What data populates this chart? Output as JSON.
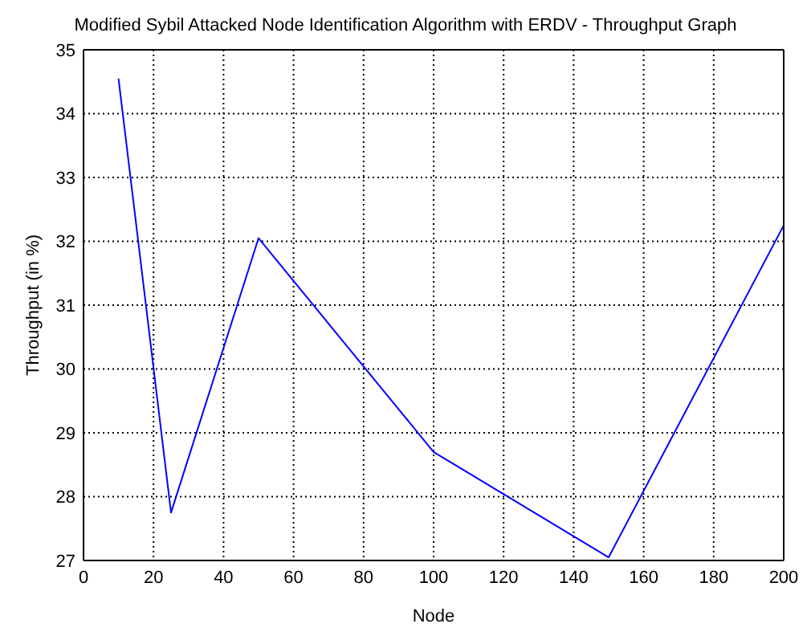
{
  "chart_data": {
    "type": "line",
    "title": "Modified Sybil Attacked Node Identification Algorithm with ERDV - Throughput Graph",
    "xlabel": "Node",
    "ylabel": "Throughput (in %)",
    "x": [
      10,
      25,
      50,
      100,
      150,
      200
    ],
    "series": [
      {
        "color": "#0000ff",
        "values": [
          34.55,
          27.75,
          32.05,
          28.7,
          27.05,
          32.25
        ]
      }
    ],
    "xlim": [
      0,
      200
    ],
    "xticks": [
      0,
      20,
      40,
      60,
      80,
      100,
      120,
      140,
      160,
      180,
      200
    ],
    "ylim": [
      27,
      35
    ],
    "yticks": [
      27,
      28,
      29,
      30,
      31,
      32,
      33,
      34,
      35
    ],
    "grid": true,
    "legend": false,
    "marker": "none",
    "line_style": "solid"
  }
}
